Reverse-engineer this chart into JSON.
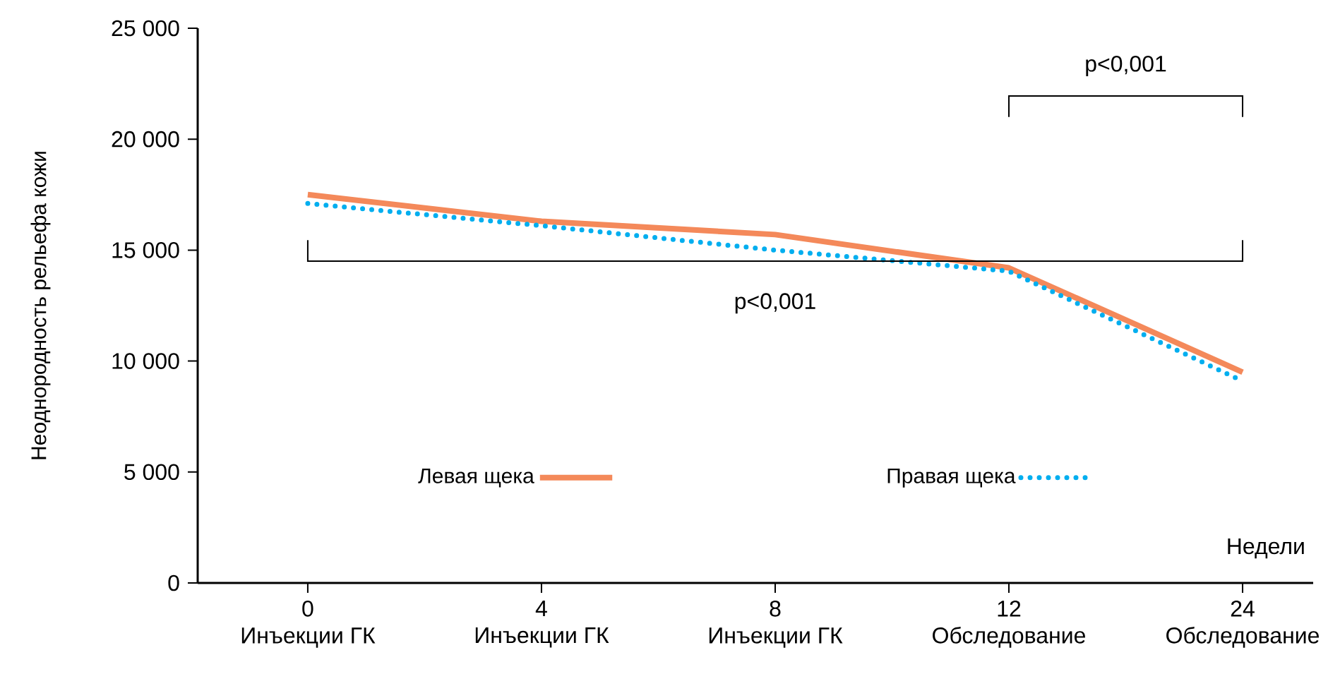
{
  "chart_data": {
    "type": "line",
    "ylabel": "Неоднородность рельефа кожи",
    "xlabel": "Недели",
    "categories": [
      "0",
      "4",
      "8",
      "12",
      "24"
    ],
    "series": [
      {
        "name": "Левая щека",
        "color": "#f4895a",
        "line_style": "solid",
        "values": [
          17500,
          16300,
          15700,
          14200,
          9500
        ]
      },
      {
        "name": "Правая щека",
        "color": "#00aeef",
        "line_style": "dotted",
        "values": [
          17100,
          16100,
          15000,
          14050,
          9100
        ]
      }
    ],
    "ylim": [
      0,
      25000
    ],
    "yticks": [
      {
        "value": 0,
        "label": "0"
      },
      {
        "value": 5000,
        "label": "5 000"
      },
      {
        "value": 10000,
        "label": "10 000"
      },
      {
        "value": 15000,
        "label": "15 000"
      },
      {
        "value": 20000,
        "label": "20 000"
      },
      {
        "value": 25000,
        "label": "25 000"
      }
    ],
    "annotations": [
      "Инъекции ГК",
      "Инъекции ГК",
      "Инъекции ГК",
      "Обследование",
      "Обследование",
      "p<0,001",
      "p<0,001"
    ],
    "legend": "bottom",
    "grid": false,
    "marker": "none"
  }
}
